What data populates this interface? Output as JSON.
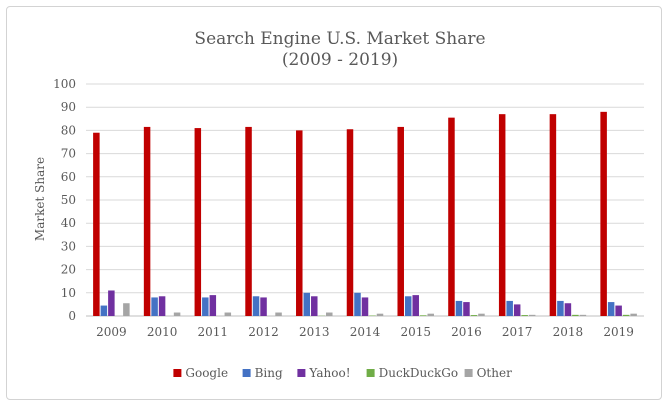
{
  "chart_data": {
    "type": "bar",
    "title_line1": "Search Engine U.S. Market Share",
    "title_line2": "(2009 - 2019)",
    "ylabel": "Market Share",
    "xlabel": "",
    "ylim": [
      0,
      100
    ],
    "yticks": [
      "0",
      "10",
      "20",
      "30",
      "40",
      "50",
      "60",
      "70",
      "80",
      "90",
      "100"
    ],
    "categories": [
      "2009",
      "2010",
      "2011",
      "2012",
      "2013",
      "2014",
      "2015",
      "2016",
      "2017",
      "2018",
      "2019"
    ],
    "grid": true,
    "legend_position": "bottom",
    "series": [
      {
        "name": "Google",
        "color": "#c00000",
        "values": [
          79,
          81.5,
          81,
          81.5,
          80,
          80.5,
          81.5,
          85.5,
          87,
          87,
          88
        ]
      },
      {
        "name": "Bing",
        "color": "#4472c4",
        "values": [
          4.5,
          8,
          8,
          8.5,
          10,
          10,
          8.5,
          6.5,
          6.5,
          6.5,
          6
        ]
      },
      {
        "name": "Yahoo!",
        "color": "#7030a0",
        "values": [
          11,
          8.5,
          9,
          8,
          8.5,
          8,
          9,
          6,
          5,
          5.5,
          4.5
        ]
      },
      {
        "name": "DuckDuckGo",
        "color": "#70ad47",
        "values": [
          0,
          0,
          0,
          0,
          0.1,
          0.2,
          0.3,
          0.4,
          0.4,
          0.5,
          0.5
        ]
      },
      {
        "name": "Other",
        "color": "#a5a5a5",
        "values": [
          5.5,
          1.5,
          1.5,
          1.5,
          1.5,
          1,
          1,
          1,
          0.5,
          0.5,
          1
        ]
      }
    ]
  }
}
